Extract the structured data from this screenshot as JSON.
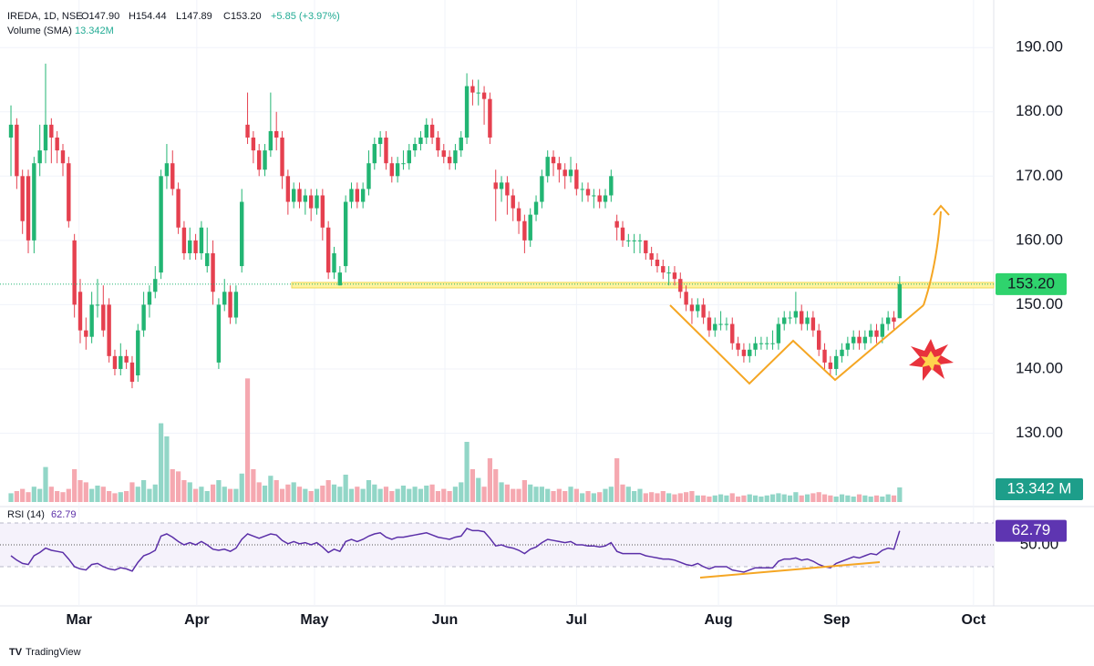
{
  "chart_data": {
    "type": "candlestick",
    "title": "IREDA, 1D, NSE",
    "ohlc_labels": [
      "O147.90",
      "H154.44",
      "L147.89",
      "C153.20"
    ],
    "change_label": "+5.85 (+3.97%)",
    "up_color": "#22b573",
    "down_color": "#e5404f",
    "ohlc": [
      [
        176,
        181,
        170,
        178
      ],
      [
        178,
        179,
        168,
        170
      ],
      [
        170,
        171,
        161,
        163
      ],
      [
        170,
        171,
        158,
        160
      ],
      [
        160,
        173,
        158,
        172
      ],
      [
        172,
        178,
        170,
        174
      ],
      [
        174,
        187.5,
        172,
        178
      ],
      [
        178,
        179,
        172,
        176
      ],
      [
        176,
        177,
        172,
        174
      ],
      [
        174,
        175,
        170,
        172
      ],
      [
        172,
        173,
        162,
        163
      ],
      [
        160,
        161,
        148,
        150
      ],
      [
        152,
        154,
        144,
        146
      ],
      [
        146,
        148,
        143,
        145
      ],
      [
        145,
        152,
        144,
        150
      ],
      [
        150,
        154,
        148,
        150
      ],
      [
        150,
        153,
        145,
        146
      ],
      [
        150,
        151,
        141,
        142
      ],
      [
        142,
        143,
        139,
        140
      ],
      [
        140,
        144,
        139,
        142
      ],
      [
        142,
        143,
        140,
        141
      ],
      [
        141,
        142,
        137,
        138
      ],
      [
        139,
        147,
        138,
        146
      ],
      [
        146,
        152,
        145,
        150
      ],
      [
        150,
        153,
        148,
        152
      ],
      [
        152,
        156,
        151,
        154
      ],
      [
        155,
        171,
        154,
        170
      ],
      [
        170,
        175,
        168,
        172
      ],
      [
        172,
        174,
        167,
        168
      ],
      [
        168,
        169,
        161,
        162
      ],
      [
        162,
        163,
        157,
        158
      ],
      [
        158,
        162,
        157,
        160
      ],
      [
        160,
        161,
        157,
        158
      ],
      [
        158,
        163,
        157,
        162
      ],
      [
        156,
        162,
        155,
        158
      ],
      [
        158,
        160,
        150,
        152
      ],
      [
        141,
        151,
        140,
        150
      ],
      [
        150,
        154,
        149,
        152
      ],
      [
        152,
        153,
        147,
        148
      ],
      [
        148,
        153,
        147,
        152
      ],
      [
        156,
        168,
        155,
        166
      ],
      [
        178,
        183,
        175,
        176
      ],
      [
        176,
        177,
        172,
        174
      ],
      [
        174,
        175,
        170,
        171
      ],
      [
        171,
        175,
        170,
        174
      ],
      [
        174,
        183,
        173,
        177
      ],
      [
        177,
        180,
        174,
        176
      ],
      [
        176,
        177,
        168,
        170
      ],
      [
        170,
        171,
        164,
        166
      ],
      [
        166,
        169,
        165,
        168
      ],
      [
        168,
        169,
        165,
        166
      ],
      [
        166,
        168,
        164,
        167
      ],
      [
        167,
        168,
        163,
        165
      ],
      [
        165,
        168,
        164,
        167
      ],
      [
        167,
        168,
        160,
        162
      ],
      [
        162,
        163,
        154,
        155
      ],
      [
        155,
        159,
        154,
        158
      ],
      [
        153,
        156,
        153,
        155
      ],
      [
        156,
        167,
        155,
        166
      ],
      [
        166,
        169,
        165,
        168
      ],
      [
        168,
        169,
        165,
        166
      ],
      [
        166,
        169,
        165,
        168
      ],
      [
        168,
        174,
        167,
        172
      ],
      [
        172,
        176,
        171,
        175
      ],
      [
        175,
        177,
        173,
        176
      ],
      [
        176,
        177,
        171,
        172
      ],
      [
        172,
        173,
        169,
        170
      ],
      [
        170,
        173,
        169,
        172
      ],
      [
        172,
        174,
        171,
        172
      ],
      [
        172,
        175,
        171,
        174
      ],
      [
        174,
        176,
        173,
        175
      ],
      [
        175,
        177,
        174,
        176
      ],
      [
        176,
        179,
        175,
        178
      ],
      [
        178,
        179,
        175,
        176
      ],
      [
        176,
        177,
        173,
        174
      ],
      [
        174,
        175,
        172,
        173
      ],
      [
        173,
        174,
        171,
        172
      ],
      [
        172,
        175,
        171,
        174
      ],
      [
        174,
        177,
        173,
        176
      ],
      [
        176,
        186,
        175,
        184
      ],
      [
        184,
        185,
        181,
        183
      ],
      [
        183,
        185,
        181,
        183
      ],
      [
        183,
        184,
        178,
        182
      ],
      [
        182,
        183,
        175,
        176
      ],
      [
        169,
        171,
        163,
        168
      ],
      [
        168,
        170,
        166,
        169
      ],
      [
        169,
        170,
        164,
        167
      ],
      [
        167,
        168,
        163,
        165
      ],
      [
        165,
        166,
        161,
        163
      ],
      [
        163,
        164,
        158,
        160
      ],
      [
        160,
        165,
        159,
        164
      ],
      [
        164,
        167,
        163,
        166
      ],
      [
        166,
        171,
        165,
        170
      ],
      [
        170,
        174,
        169,
        173
      ],
      [
        173,
        174,
        170,
        172
      ],
      [
        172,
        173,
        169,
        171
      ],
      [
        171,
        172,
        168,
        170
      ],
      [
        170,
        173,
        169,
        171
      ],
      [
        171,
        172,
        167,
        168
      ],
      [
        168,
        169,
        166,
        168
      ],
      [
        168,
        169,
        166,
        167
      ],
      [
        167,
        168,
        165,
        167
      ],
      [
        167,
        168,
        165,
        166
      ],
      [
        166,
        168,
        165,
        167
      ],
      [
        167,
        171,
        166,
        170
      ],
      [
        163,
        164,
        160,
        162
      ],
      [
        162,
        163,
        159,
        160
      ],
      [
        160,
        161,
        159,
        160
      ],
      [
        160,
        161,
        158,
        160
      ],
      [
        160,
        161,
        158,
        160
      ],
      [
        160,
        160,
        157,
        158
      ],
      [
        158,
        159,
        156,
        157
      ],
      [
        157,
        158,
        155,
        156
      ],
      [
        156,
        157,
        154,
        155
      ],
      [
        155,
        156,
        153,
        155
      ],
      [
        155,
        156,
        153,
        154
      ],
      [
        154,
        155,
        151,
        152
      ],
      [
        152,
        153,
        149,
        150
      ],
      [
        150,
        151,
        147,
        149
      ],
      [
        149,
        151,
        148,
        150
      ],
      [
        150,
        151,
        147,
        148
      ],
      [
        148,
        149,
        145,
        146
      ],
      [
        146,
        148,
        145,
        147
      ],
      [
        147,
        149,
        146,
        147
      ],
      [
        147,
        148,
        146,
        147
      ],
      [
        147,
        148,
        143,
        144
      ],
      [
        144,
        145,
        142,
        143
      ],
      [
        143,
        144,
        141,
        142
      ],
      [
        142,
        144,
        141,
        143
      ],
      [
        143,
        145,
        142,
        144
      ],
      [
        144,
        145,
        143,
        144
      ],
      [
        144,
        145,
        143,
        144
      ],
      [
        144,
        146,
        143,
        144
      ],
      [
        144,
        148,
        143,
        147
      ],
      [
        147,
        149,
        146,
        148
      ],
      [
        148,
        149,
        147,
        148
      ],
      [
        148,
        152,
        147,
        149
      ],
      [
        149,
        150,
        146,
        147
      ],
      [
        147,
        149,
        146,
        148
      ],
      [
        148,
        149,
        145,
        146
      ],
      [
        146,
        147,
        142,
        143
      ],
      [
        143,
        144,
        140,
        141
      ],
      [
        141,
        142,
        139,
        140
      ],
      [
        140,
        143,
        139,
        142
      ],
      [
        142,
        144,
        141,
        143
      ],
      [
        143,
        145,
        142,
        144
      ],
      [
        144,
        146,
        143,
        145
      ],
      [
        145,
        146,
        143,
        144
      ],
      [
        144,
        146,
        143,
        145
      ],
      [
        145,
        147,
        144,
        146
      ],
      [
        146,
        147,
        144,
        145
      ],
      [
        145,
        148,
        144,
        147
      ],
      [
        147,
        149,
        146,
        148
      ],
      [
        148,
        149,
        146,
        147.35
      ],
      [
        147.9,
        154.44,
        147.89,
        153.2
      ]
    ],
    "ylim": [
      119.3,
      197.4
    ],
    "yticks": [
      {
        "value": 130,
        "label": "130.00"
      },
      {
        "value": 140,
        "label": "140.00"
      },
      {
        "value": 150,
        "label": "150.00"
      },
      {
        "value": 160,
        "label": "160.00"
      },
      {
        "value": 170,
        "label": "170.00"
      },
      {
        "value": 180,
        "label": "180.00"
      },
      {
        "value": 190,
        "label": "190.00"
      }
    ],
    "last_price_label": "153.20",
    "xlim": [
      -1.9,
      170.3
    ],
    "xticks": [
      {
        "value": 11.8,
        "label": "Mar"
      },
      {
        "value": 32.2,
        "label": "Apr"
      },
      {
        "value": 52.6,
        "label": "May"
      },
      {
        "value": 75.2,
        "label": "Jun"
      },
      {
        "value": 98,
        "label": "Jul"
      },
      {
        "value": 122.6,
        "label": "Aug"
      },
      {
        "value": 143.1,
        "label": "Sep"
      },
      {
        "value": 166.8,
        "label": "Oct"
      }
    ],
    "volume": {
      "name": "Volume (SMA)",
      "value_label": "13.342M",
      "axis_label": "13.342 M",
      "up_color": "#92d6c7",
      "down_color": "#f5a8b0",
      "ylim": [
        0,
        459
      ],
      "values": [
        8,
        10,
        12,
        9,
        14,
        12,
        32,
        14,
        10,
        9,
        12,
        30,
        20,
        18,
        12,
        15,
        14,
        10,
        8,
        9,
        10,
        18,
        14,
        20,
        12,
        16,
        72,
        60,
        30,
        28,
        20,
        18,
        12,
        14,
        10,
        16,
        20,
        14,
        12,
        12,
        26,
        113,
        30,
        18,
        15,
        24,
        20,
        12,
        16,
        18,
        14,
        12,
        10,
        12,
        15,
        20,
        16,
        14,
        25,
        12,
        14,
        12,
        20,
        16,
        12,
        14,
        10,
        12,
        15,
        12,
        14,
        12,
        15,
        16,
        10,
        12,
        10,
        14,
        18,
        55,
        30,
        22,
        14,
        40,
        30,
        18,
        16,
        12,
        12,
        20,
        16,
        14,
        14,
        12,
        10,
        12,
        10,
        14,
        12,
        8,
        10,
        8,
        9,
        12,
        14,
        40,
        16,
        14,
        10,
        12,
        8,
        9,
        8,
        10,
        8,
        7,
        8,
        9,
        10,
        6,
        6,
        5,
        6,
        7,
        6,
        8,
        5,
        6,
        7,
        6,
        5,
        6,
        7,
        8,
        7,
        6,
        9,
        6,
        7,
        8,
        9,
        7,
        6,
        5,
        7,
        6,
        5,
        7,
        6,
        5,
        6,
        5,
        7,
        6,
        13.342
      ]
    },
    "rsi": {
      "name": "RSI (14)",
      "value_label": "62.79",
      "color": "#5b2fa8",
      "ylim": [
        1.7,
        85
      ],
      "yticks": [
        {
          "value": 50,
          "label": "50.00"
        }
      ],
      "bands": [
        30,
        70
      ],
      "values": [
        40,
        36,
        33,
        32,
        40,
        43,
        47,
        45,
        44,
        43,
        37,
        30,
        28,
        27,
        32,
        33,
        30,
        28,
        27,
        29,
        28,
        26,
        34,
        40,
        42,
        45,
        58,
        60,
        57,
        53,
        50,
        52,
        50,
        53,
        50,
        46,
        45,
        46,
        44,
        47,
        55,
        60,
        58,
        56,
        58,
        60,
        59,
        54,
        51,
        53,
        51,
        52,
        50,
        52,
        48,
        43,
        46,
        44,
        53,
        55,
        53,
        55,
        58,
        60,
        61,
        57,
        55,
        57,
        57,
        58,
        59,
        60,
        61,
        59,
        57,
        56,
        55,
        57,
        58,
        65,
        63,
        63,
        62,
        56,
        49,
        50,
        48,
        47,
        45,
        42,
        46,
        48,
        52,
        55,
        54,
        53,
        52,
        53,
        50,
        50,
        49,
        49,
        48,
        49,
        52,
        44,
        42,
        42,
        42,
        42,
        40,
        39,
        38,
        37,
        37,
        36,
        34,
        32,
        31,
        33,
        30,
        28,
        30,
        30,
        30,
        27,
        26,
        25,
        27,
        29,
        29,
        29,
        29,
        35,
        37,
        37,
        38,
        36,
        37,
        35,
        32,
        30,
        29,
        33,
        35,
        37,
        39,
        38,
        40,
        42,
        41,
        45,
        47,
        46,
        62.79
      ]
    },
    "brand": "TradingView"
  }
}
